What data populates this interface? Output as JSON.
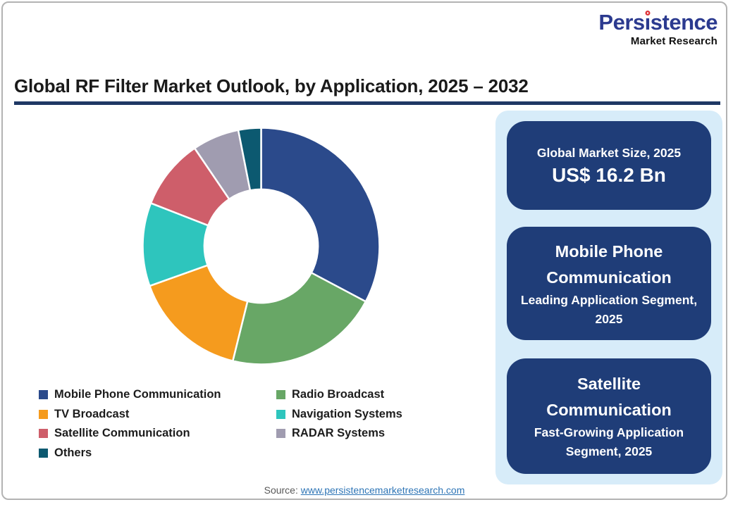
{
  "logo": {
    "name": "Persistence",
    "tagline": "Market Research",
    "brand_color": "#2b3a8f",
    "dot_color": "#df3338"
  },
  "title": "Global RF Filter Market Outlook, by Application, 2025 – 2032",
  "chart_data": {
    "type": "pie",
    "subtype": "donut",
    "title": "Global RF Filter Market Outlook, by Application, 2025 – 2032",
    "start_angle_deg": 0,
    "direction": "clockwise",
    "inner_radius_ratio": 0.48,
    "units": "% share (estimated from arc angles)",
    "segments": [
      {
        "label": "Mobile Phone Communication",
        "value": 32.8,
        "color": "#2b4a8b"
      },
      {
        "label": "Radio Broadcast",
        "value": 21.1,
        "color": "#68a766"
      },
      {
        "label": "TV Broadcast",
        "value": 15.7,
        "color": "#f59b1e"
      },
      {
        "label": "Navigation Systems",
        "value": 11.4,
        "color": "#2ec5bd"
      },
      {
        "label": "Satellite Communication",
        "value": 9.6,
        "color": "#ce5e6a"
      },
      {
        "label": "RADAR Systems",
        "value": 6.4,
        "color": "#a09cb0"
      },
      {
        "label": "Others",
        "value": 3.1,
        "color": "#0c5970"
      }
    ],
    "legend_position": "bottom",
    "legend_columns": [
      [
        "Mobile Phone Communication",
        "TV Broadcast",
        "Satellite Communication",
        "Others"
      ],
      [
        "Radio Broadcast",
        "Navigation Systems",
        "RADAR Systems"
      ]
    ]
  },
  "info_panel": {
    "background": "#d7ecf9",
    "box_color": "#1f3d78",
    "boxes": [
      {
        "title": "Global Market Size, 2025",
        "value": "US$ 16.2 Bn"
      },
      {
        "title": "Mobile Phone Communication",
        "subtitle": "Leading Application Segment, 2025"
      },
      {
        "title": "Satellite Communication",
        "subtitle": "Fast-Growing Application Segment, 2025"
      }
    ]
  },
  "source": {
    "label": "Source:",
    "link_text": "www.persistencemarketresearch.com"
  }
}
